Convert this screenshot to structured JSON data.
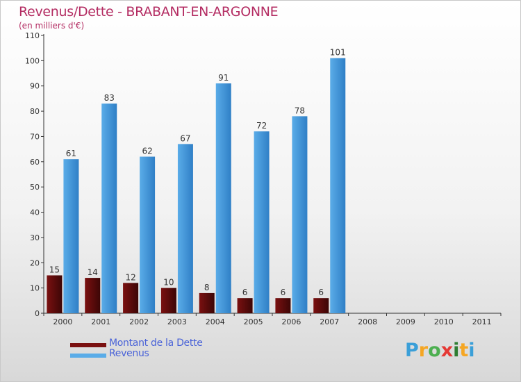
{
  "header": {
    "title": "Revenus/Dette - BRABANT-EN-ARGONNE",
    "subtitle": "(en milliers d'€)"
  },
  "legend": {
    "debt_label": "Montant de la Dette",
    "revenue_label": "Revenus"
  },
  "logo": {
    "text": "Proxiti",
    "letters": [
      "P",
      "r",
      "o",
      "x",
      "i",
      "t",
      "i"
    ],
    "colors": [
      "#3a9fd8",
      "#f5a623",
      "#4caf50",
      "#e53935",
      "#2e7d32",
      "#f5a623",
      "#3a9fd8"
    ]
  },
  "colors": {
    "debt": "#7a1010",
    "debt_dark": "#3c0606",
    "revenue": "#5aace8",
    "revenue_dark": "#2f7fc6",
    "title": "#b42d63",
    "legend_text": "#4a63d8"
  },
  "chart_data": {
    "type": "bar",
    "title": "Revenus/Dette - BRABANT-EN-ARGONNE",
    "subtitle": "(en milliers d'€)",
    "xlabel": "",
    "ylabel": "",
    "categories": [
      "2000",
      "2001",
      "2002",
      "2003",
      "2004",
      "2005",
      "2006",
      "2007",
      "2008",
      "2009",
      "2010",
      "2011"
    ],
    "series": [
      {
        "name": "Montant de la Dette",
        "values": [
          15,
          14,
          12,
          10,
          8,
          6,
          6,
          6,
          null,
          null,
          null,
          null
        ]
      },
      {
        "name": "Revenus",
        "values": [
          61,
          83,
          62,
          67,
          91,
          72,
          78,
          101,
          null,
          null,
          null,
          null
        ]
      }
    ],
    "ylim": [
      0,
      110
    ],
    "yticks": [
      0,
      10,
      20,
      30,
      40,
      50,
      60,
      70,
      80,
      90,
      100,
      110
    ],
    "grid": false,
    "legend_position": "bottom-left"
  }
}
